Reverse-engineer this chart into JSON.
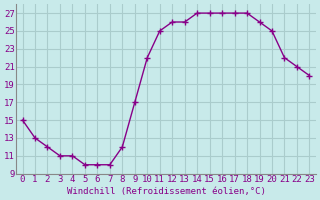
{
  "x": [
    0,
    1,
    2,
    3,
    4,
    5,
    6,
    7,
    8,
    9,
    10,
    11,
    12,
    13,
    14,
    15,
    16,
    17,
    18,
    19,
    20,
    21,
    22,
    23
  ],
  "y": [
    15,
    13,
    12,
    11,
    11,
    10,
    10,
    10,
    12,
    17,
    22,
    25,
    26,
    26,
    27,
    27,
    27,
    27,
    27,
    26,
    25,
    22,
    21,
    20
  ],
  "line_color": "#880088",
  "marker": "+",
  "marker_color": "#880088",
  "bg_color": "#c8eaea",
  "grid_color": "#aacccc",
  "spine_color": "#888888",
  "xlabel": "Windchill (Refroidissement éolien,°C)",
  "xlabel_color": "#880088",
  "tick_color": "#880088",
  "ylim": [
    9,
    28
  ],
  "xlim": [
    -0.5,
    23.5
  ],
  "yticks": [
    9,
    11,
    13,
    15,
    17,
    19,
    21,
    23,
    25,
    27
  ],
  "xticks": [
    0,
    1,
    2,
    3,
    4,
    5,
    6,
    7,
    8,
    9,
    10,
    11,
    12,
    13,
    14,
    15,
    16,
    17,
    18,
    19,
    20,
    21,
    22,
    23
  ],
  "xlabel_fontsize": 6.5,
  "tick_fontsize": 6.5,
  "linewidth": 1.0,
  "markersize": 5,
  "markeredgewidth": 1.0
}
